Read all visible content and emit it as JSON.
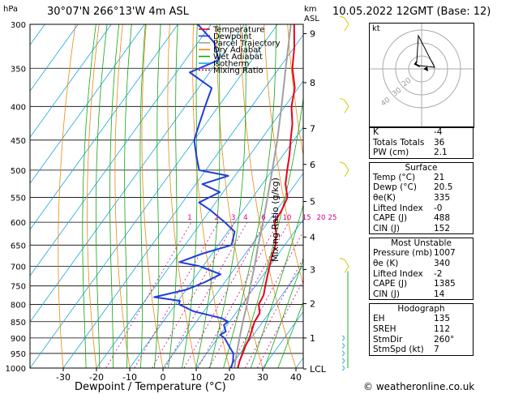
{
  "header": {
    "station": "30°07'N  266°13'W  4m ASL",
    "datetime": "10.05.2022  12GMT  (Base: 12)",
    "hpa_label": "hPa",
    "km_label": "km\nASL",
    "km_label_1": "km",
    "km_label_2": "ASL"
  },
  "chart_data": {
    "type": "line",
    "title": "30°07'N  266°13'W  4m ASL",
    "xlabel": "Dewpoint / Temperature (°C)",
    "ylabel": "hPa",
    "right_label": "Mixing Ratio (g/kg)",
    "pressure_ticks": [
      300,
      350,
      400,
      450,
      500,
      550,
      600,
      650,
      700,
      750,
      800,
      850,
      900,
      950,
      1000
    ],
    "temp_ticks": [
      -30,
      -20,
      -10,
      0,
      10,
      20,
      30,
      40
    ],
    "km_ticks": [
      {
        "km": "9",
        "p": 310
      },
      {
        "km": "8",
        "p": 368
      },
      {
        "km": "7",
        "p": 432
      },
      {
        "km": "6",
        "p": 490
      },
      {
        "km": "5",
        "p": 558
      },
      {
        "km": "4",
        "p": 632
      },
      {
        "km": "3",
        "p": 708
      },
      {
        "km": "2",
        "p": 798
      },
      {
        "km": "1",
        "p": 900
      },
      {
        "km": "LCL",
        "p": 1003
      }
    ],
    "mixing_ratio_labels": [
      "1",
      "2",
      "3",
      "4",
      "6",
      "8",
      "10",
      "15",
      "20",
      "25"
    ],
    "mixing_ratio_values": [
      1,
      2,
      3,
      4,
      6,
      8,
      10,
      15,
      20,
      25
    ],
    "legend": [
      "Temperature",
      "Dewpoint",
      "Parcel Trajectory",
      "Dry Adiabat",
      "Wet Adiabat",
      "Isotherm",
      "Mixing Ratio"
    ],
    "colors": {
      "temperature": "#e8001c",
      "dewpoint": "#1f3fd8",
      "parcel": "#a0a0a0",
      "dry_adiabat": "#e88a10",
      "wet_adiabat": "#13a613",
      "isotherm": "#19a7e0",
      "mixing_ratio": "#d0008a",
      "wind_barb": "#d6c800",
      "wind_low": "#22b0d0"
    },
    "series": [
      {
        "name": "Temperature",
        "points": [
          {
            "p": 1000,
            "t": 22.5
          },
          {
            "p": 975,
            "t": 21.5
          },
          {
            "p": 950,
            "t": 20.8
          },
          {
            "p": 925,
            "t": 20
          },
          {
            "p": 900,
            "t": 19.5
          },
          {
            "p": 875,
            "t": 18.5
          },
          {
            "p": 850,
            "t": 17.5
          },
          {
            "p": 825,
            "t": 17.2
          },
          {
            "p": 800,
            "t": 15
          },
          {
            "p": 775,
            "t": 14.5
          },
          {
            "p": 750,
            "t": 13
          },
          {
            "p": 725,
            "t": 11.5
          },
          {
            "p": 700,
            "t": 10
          },
          {
            "p": 675,
            "t": 8.5
          },
          {
            "p": 650,
            "t": 7.2
          },
          {
            "p": 625,
            "t": 5
          },
          {
            "p": 600,
            "t": 2
          },
          {
            "p": 575,
            "t": 1.5
          },
          {
            "p": 550,
            "t": 0.5
          },
          {
            "p": 525,
            "t": -3
          },
          {
            "p": 500,
            "t": -5.5
          },
          {
            "p": 475,
            "t": -8
          },
          {
            "p": 450,
            "t": -11
          },
          {
            "p": 425,
            "t": -14
          },
          {
            "p": 400,
            "t": -18
          },
          {
            "p": 375,
            "t": -21
          },
          {
            "p": 350,
            "t": -26
          },
          {
            "p": 325,
            "t": -30
          },
          {
            "p": 300,
            "t": -35
          }
        ]
      },
      {
        "name": "Dewpoint",
        "points": [
          {
            "p": 1000,
            "t": 20.5
          },
          {
            "p": 975,
            "t": 19.5
          },
          {
            "p": 950,
            "t": 18
          },
          {
            "p": 925,
            "t": 15
          },
          {
            "p": 900,
            "t": 12
          },
          {
            "p": 890,
            "t": 10
          },
          {
            "p": 880,
            "t": 11
          },
          {
            "p": 860,
            "t": 9
          },
          {
            "p": 850,
            "t": 9.5
          },
          {
            "p": 840,
            "t": 7
          },
          {
            "p": 820,
            "t": -3
          },
          {
            "p": 800,
            "t": -9
          },
          {
            "p": 790,
            "t": -9.5
          },
          {
            "p": 780,
            "t": -18
          },
          {
            "p": 760,
            "t": -10
          },
          {
            "p": 740,
            "t": -6
          },
          {
            "p": 720,
            "t": -3
          },
          {
            "p": 700,
            "t": -11
          },
          {
            "p": 690,
            "t": -18
          },
          {
            "p": 670,
            "t": -13
          },
          {
            "p": 650,
            "t": -6
          },
          {
            "p": 620,
            "t": -8
          },
          {
            "p": 600,
            "t": -13
          },
          {
            "p": 575,
            "t": -20
          },
          {
            "p": 560,
            "t": -25
          },
          {
            "p": 540,
            "t": -21
          },
          {
            "p": 525,
            "t": -28
          },
          {
            "p": 510,
            "t": -22
          },
          {
            "p": 500,
            "t": -32
          },
          {
            "p": 475,
            "t": -36
          },
          {
            "p": 450,
            "t": -40
          },
          {
            "p": 425,
            "t": -42
          },
          {
            "p": 400,
            "t": -44
          },
          {
            "p": 375,
            "t": -46
          },
          {
            "p": 355,
            "t": -56
          },
          {
            "p": 340,
            "t": -50
          },
          {
            "p": 320,
            "t": -55
          },
          {
            "p": 300,
            "t": -64
          }
        ]
      },
      {
        "name": "Parcel Trajectory",
        "points": [
          {
            "p": 1000,
            "t": 21.5
          },
          {
            "p": 950,
            "t": 19
          },
          {
            "p": 900,
            "t": 16.5
          },
          {
            "p": 850,
            "t": 14
          },
          {
            "p": 800,
            "t": 11.5
          },
          {
            "p": 750,
            "t": 8.5
          },
          {
            "p": 700,
            "t": 5.5
          },
          {
            "p": 650,
            "t": 2
          },
          {
            "p": 600,
            "t": -1.5
          },
          {
            "p": 550,
            "t": -5.5
          },
          {
            "p": 500,
            "t": -10
          },
          {
            "p": 450,
            "t": -15
          },
          {
            "p": 400,
            "t": -21
          },
          {
            "p": 350,
            "t": -28
          },
          {
            "p": 300,
            "t": -36
          }
        ]
      }
    ]
  },
  "hodograph": {
    "label": "kt",
    "ring_labels": [
      "40",
      "30",
      "20"
    ]
  },
  "indices": {
    "rows": [
      {
        "label": "K",
        "value": "-4"
      },
      {
        "label": "Totals Totals",
        "value": "36"
      },
      {
        "label": "PW (cm)",
        "value": "2.1"
      }
    ]
  },
  "surface": {
    "title": "Surface",
    "rows": [
      {
        "label": "Temp (°C)",
        "value": "21"
      },
      {
        "label": "Dewp (°C)",
        "value": "20.5"
      },
      {
        "label": "θe(K)",
        "value": "335"
      },
      {
        "label": "Lifted Index",
        "value": "-0"
      },
      {
        "label": "CAPE (J)",
        "value": "488"
      },
      {
        "label": "CIN (J)",
        "value": "152"
      }
    ]
  },
  "most_unstable": {
    "title": "Most Unstable",
    "rows": [
      {
        "label": "Pressure (mb)",
        "value": "1007"
      },
      {
        "label": "θe (K)",
        "value": "340"
      },
      {
        "label": "Lifted Index",
        "value": "-2"
      },
      {
        "label": "CAPE (J)",
        "value": "1385"
      },
      {
        "label": "CIN (J)",
        "value": "14"
      }
    ]
  },
  "hodograph_table": {
    "title": "Hodograph",
    "rows": [
      {
        "label": "EH",
        "value": "135"
      },
      {
        "label": "SREH",
        "value": "112"
      },
      {
        "label": "StmDir",
        "value": "260°"
      },
      {
        "label": "StmSpd (kt)",
        "value": "7"
      }
    ]
  },
  "footer": {
    "copyright": "© weatheronline.co.uk"
  }
}
